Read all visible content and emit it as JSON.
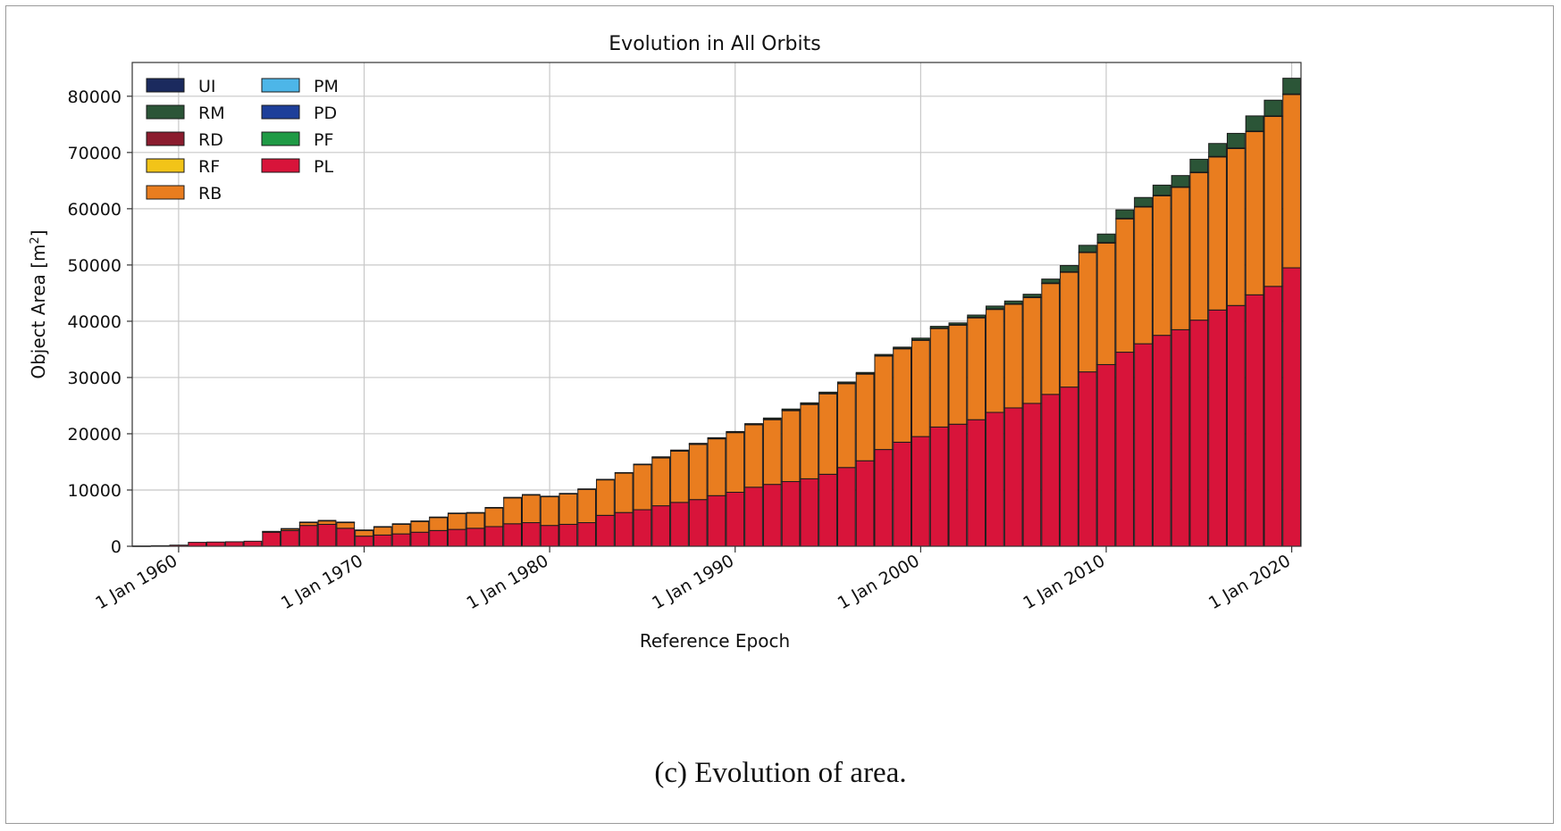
{
  "caption": "(c) Evolution of area.",
  "colors": {
    "UI": "#1b2a5e",
    "RM": "#2b5537",
    "RD": "#8b1c2e",
    "RF": "#f2c418",
    "RB": "#e97d1f",
    "PM": "#4db6e8",
    "PD": "#1d3f9a",
    "PF": "#1f9a45",
    "PL": "#d8143a"
  },
  "chart_data": {
    "type": "bar",
    "stacked": true,
    "title": "Evolution in All Orbits",
    "xlabel": "Reference Epoch",
    "ylabel": "Object Area [m",
    "ylabel_superscript": "2",
    "ylabel_suffix": "]",
    "ylim": [
      0,
      86000
    ],
    "yticks": [
      0,
      10000,
      20000,
      30000,
      40000,
      50000,
      60000,
      70000,
      80000
    ],
    "xlim": [
      1957.5,
      2020.5
    ],
    "xticks": [
      1960,
      1970,
      1980,
      1990,
      2000,
      2010,
      2020
    ],
    "xtick_labels": [
      "1 Jan 1960",
      "1 Jan 1970",
      "1 Jan 1980",
      "1 Jan 1990",
      "1 Jan 2000",
      "1 Jan 2010",
      "1 Jan 2020"
    ],
    "grid": true,
    "legend_position": "top-left",
    "legend_columns": [
      [
        "UI",
        "RM",
        "RD",
        "RF",
        "RB"
      ],
      [
        "PM",
        "PD",
        "PF",
        "PL"
      ]
    ],
    "years": [
      1958,
      1959,
      1960,
      1961,
      1962,
      1963,
      1964,
      1965,
      1966,
      1967,
      1968,
      1969,
      1970,
      1971,
      1972,
      1973,
      1974,
      1975,
      1976,
      1977,
      1978,
      1979,
      1980,
      1981,
      1982,
      1983,
      1984,
      1985,
      1986,
      1987,
      1988,
      1989,
      1990,
      1991,
      1992,
      1993,
      1994,
      1995,
      1996,
      1997,
      1998,
      1999,
      2000,
      2001,
      2002,
      2003,
      2004,
      2005,
      2006,
      2007,
      2008,
      2009,
      2010,
      2011,
      2012,
      2013,
      2014,
      2015,
      2016,
      2017,
      2018,
      2019,
      2020
    ],
    "series": [
      {
        "name": "PL",
        "values": [
          50,
          100,
          200,
          700,
          750,
          800,
          900,
          2500,
          2800,
          3700,
          3900,
          3200,
          1800,
          2000,
          2200,
          2500,
          2800,
          3000,
          3200,
          3500,
          4000,
          4200,
          3700,
          3900,
          4200,
          5500,
          6000,
          6500,
          7200,
          7800,
          8300,
          9000,
          9600,
          10500,
          11000,
          11500,
          12000,
          12800,
          14000,
          15200,
          17200,
          18500,
          19500,
          21200,
          21700,
          22500,
          23800,
          24600,
          25400,
          27000,
          28300,
          31000,
          32300,
          34500,
          36000,
          37500,
          38500,
          40200,
          42000,
          42800,
          44700,
          46200,
          49500
        ]
      },
      {
        "name": "PF",
        "values": [
          0,
          0,
          0,
          0,
          0,
          0,
          0,
          0,
          0,
          0,
          0,
          0,
          0,
          0,
          0,
          0,
          0,
          0,
          0,
          0,
          0,
          0,
          0,
          0,
          0,
          0,
          0,
          0,
          0,
          0,
          0,
          0,
          0,
          0,
          0,
          0,
          0,
          0,
          0,
          0,
          0,
          0,
          0,
          0,
          0,
          0,
          0,
          0,
          0,
          0,
          0,
          0,
          0,
          0,
          0,
          0,
          0,
          0,
          0,
          0,
          0,
          0,
          0
        ]
      },
      {
        "name": "PD",
        "values": [
          0,
          0,
          0,
          0,
          0,
          0,
          0,
          0,
          0,
          0,
          0,
          0,
          0,
          0,
          0,
          0,
          0,
          0,
          0,
          0,
          0,
          0,
          0,
          0,
          0,
          0,
          0,
          0,
          0,
          0,
          0,
          0,
          0,
          0,
          0,
          0,
          0,
          0,
          0,
          0,
          0,
          0,
          0,
          0,
          0,
          0,
          0,
          0,
          0,
          0,
          0,
          0,
          0,
          0,
          0,
          0,
          0,
          0,
          0,
          0,
          0,
          0,
          0
        ]
      },
      {
        "name": "PM",
        "values": [
          0,
          0,
          0,
          0,
          0,
          0,
          0,
          0,
          0,
          0,
          0,
          0,
          0,
          0,
          0,
          0,
          0,
          0,
          0,
          0,
          0,
          0,
          0,
          0,
          0,
          0,
          0,
          0,
          0,
          0,
          0,
          0,
          0,
          0,
          0,
          0,
          0,
          0,
          0,
          0,
          0,
          0,
          0,
          0,
          0,
          0,
          0,
          0,
          0,
          0,
          0,
          0,
          0,
          0,
          0,
          0,
          0,
          0,
          0,
          0,
          0,
          0,
          0
        ]
      },
      {
        "name": "RB",
        "values": [
          0,
          0,
          0,
          0,
          0,
          0,
          0,
          100,
          300,
          500,
          600,
          1000,
          1000,
          1400,
          1700,
          1900,
          2300,
          2800,
          2700,
          3300,
          4600,
          4900,
          5100,
          5400,
          5900,
          6300,
          7000,
          8000,
          8500,
          9100,
          9800,
          10100,
          10600,
          11100,
          11500,
          12600,
          13200,
          14300,
          14900,
          15400,
          16600,
          16600,
          17100,
          17500,
          17600,
          18100,
          18300,
          18400,
          18800,
          19700,
          20400,
          21200,
          21600,
          23700,
          24300,
          24800,
          25300,
          26200,
          27200,
          27900,
          29000,
          30200,
          30800
        ]
      },
      {
        "name": "RF",
        "values": [
          0,
          0,
          0,
          0,
          0,
          0,
          0,
          0,
          0,
          0,
          0,
          0,
          0,
          0,
          0,
          0,
          0,
          0,
          0,
          0,
          0,
          0,
          0,
          0,
          0,
          0,
          0,
          0,
          0,
          0,
          0,
          0,
          0,
          0,
          0,
          0,
          0,
          0,
          0,
          0,
          0,
          0,
          0,
          0,
          0,
          0,
          0,
          0,
          0,
          0,
          0,
          0,
          0,
          0,
          0,
          0,
          0,
          0,
          0,
          0,
          0,
          0,
          0
        ]
      },
      {
        "name": "RD",
        "values": [
          0,
          0,
          0,
          0,
          0,
          0,
          0,
          50,
          50,
          100,
          100,
          100,
          100,
          100,
          100,
          100,
          100,
          100,
          100,
          100,
          100,
          100,
          100,
          100,
          100,
          100,
          100,
          100,
          100,
          100,
          100,
          100,
          100,
          100,
          100,
          100,
          100,
          100,
          100,
          100,
          100,
          100,
          100,
          100,
          100,
          100,
          100,
          100,
          100,
          100,
          100,
          100,
          100,
          100,
          100,
          100,
          100,
          100,
          100,
          100,
          100,
          100,
          100
        ]
      },
      {
        "name": "RM",
        "values": [
          0,
          0,
          0,
          0,
          0,
          0,
          0,
          0,
          0,
          0,
          0,
          0,
          0,
          0,
          0,
          0,
          0,
          0,
          0,
          0,
          0,
          0,
          0,
          0,
          0,
          0,
          0,
          0,
          100,
          100,
          100,
          100,
          100,
          100,
          200,
          200,
          200,
          200,
          200,
          200,
          200,
          200,
          300,
          300,
          300,
          400,
          500,
          500,
          500,
          700,
          1100,
          1200,
          1500,
          1500,
          1600,
          1800,
          2000,
          2300,
          2300,
          2600,
          2700,
          2800,
          2800
        ]
      },
      {
        "name": "UI",
        "values": [
          0,
          0,
          0,
          0,
          0,
          0,
          0,
          0,
          0,
          0,
          0,
          0,
          0,
          0,
          0,
          0,
          0,
          0,
          0,
          0,
          0,
          0,
          0,
          0,
          0,
          0,
          0,
          0,
          0,
          0,
          0,
          0,
          0,
          0,
          0,
          0,
          0,
          0,
          0,
          0,
          0,
          0,
          0,
          0,
          0,
          0,
          0,
          0,
          0,
          0,
          0,
          0,
          0,
          0,
          0,
          0,
          0,
          0,
          0,
          0,
          0,
          0,
          0
        ]
      }
    ]
  }
}
